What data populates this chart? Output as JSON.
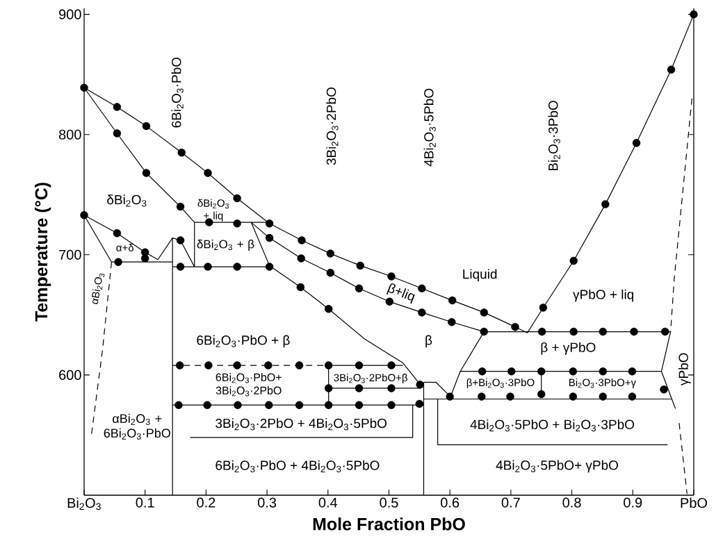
{
  "chart_data": {
    "type": "line",
    "xlabel": "Mole Fraction PbO",
    "ylabel": "Temperature (°C)",
    "xlim": [
      0,
      1
    ],
    "ylim": [
      500,
      905
    ],
    "xticks": [
      {
        "value": 0,
        "label": "Bi$_{2}$O$_{3}$"
      },
      0.1,
      0.2,
      0.3,
      0.4,
      0.5,
      0.6,
      0.7,
      0.8,
      0.9,
      {
        "value": 1,
        "label": "PbO"
      }
    ],
    "yticks": [
      600,
      700,
      800,
      900
    ],
    "series": [
      {
        "color": "#000000",
        "x": [
          0,
          0.054,
          0.102,
          0.16,
          0.203,
          0.251,
          0.304,
          0.357,
          0.404,
          0.453,
          0.504,
          0.554,
          0.604,
          0.656,
          0.707,
          0.727
        ],
        "values": [
          839,
          823,
          807,
          785,
          768,
          747,
          726,
          712,
          701,
          691,
          682,
          672,
          662,
          652,
          640,
          635
        ]
      },
      {
        "color": "#000000",
        "x": [
          0.727,
          0.753,
          0.803,
          0.855,
          0.906,
          0.963,
          1.0
        ],
        "values": [
          635,
          656,
          695,
          742,
          793,
          854,
          900
        ]
      },
      {
        "color": "#000000",
        "x": [
          0,
          0.054,
          0.102,
          0.158,
          0.181
        ],
        "values": [
          839,
          801,
          768,
          740,
          727
        ]
      },
      {
        "color": "#000000",
        "x": [
          0.181,
          0.304
        ],
        "values": [
          727,
          727
        ]
      },
      {
        "color": "#000000",
        "x": [
          0.274,
          0.304,
          0.356,
          0.404,
          0.451,
          0.501,
          0.554,
          0.603,
          0.656
        ],
        "values": [
          727,
          714,
          697,
          685,
          672,
          661,
          652,
          644,
          636
        ]
      },
      {
        "color": "#000000",
        "x": [
          0.274,
          0.304
        ],
        "values": [
          727,
          691
        ]
      },
      {
        "color": "#000000",
        "x": [
          0.304,
          0.355,
          0.401,
          0.46,
          0.523,
          0.542,
          0.551
        ],
        "values": [
          691,
          673,
          655,
          630,
          610,
          598,
          592
        ]
      },
      {
        "color": "#000000",
        "x": [
          0.145,
          0.304
        ],
        "values": [
          690,
          690
        ]
      },
      {
        "color": "#000000",
        "x": [
          0.181,
          0.181
        ],
        "values": [
          727,
          690
        ]
      },
      {
        "color": "#000000",
        "x": [
          0.121,
          0.145,
          0.158,
          0.181
        ],
        "values": [
          696,
          714,
          712,
          690
        ]
      },
      {
        "color": "#000000",
        "x": [
          0,
          0.054,
          0.1,
          0.121
        ],
        "values": [
          733,
          718,
          702,
          696
        ]
      },
      {
        "color": "#000000",
        "x": [
          0,
          0.045
        ],
        "values": [
          733,
          694
        ]
      },
      {
        "color": "#000000",
        "x": [
          0.045,
          0.145
        ],
        "values": [
          694,
          694
        ]
      },
      {
        "color": "#000000",
        "x": [
          0.145,
          0.145
        ],
        "values": [
          500,
          714
        ]
      },
      {
        "color": "#000000",
        "line_style": "dashed",
        "x": [
          0.045,
          0.03,
          0.012
        ],
        "values": [
          694,
          620,
          550
        ]
      },
      {
        "color": "#000000",
        "line_style": "dashed",
        "x": [
          0.145,
          0.401
        ],
        "values": [
          608,
          608
        ]
      },
      {
        "color": "#000000",
        "x": [
          0.401,
          0.523
        ],
        "values": [
          608,
          608
        ]
      },
      {
        "color": "#000000",
        "x": [
          0.145,
          0.557
        ],
        "values": [
          575,
          575
        ]
      },
      {
        "color": "#000000",
        "x": [
          0.401,
          0.551
        ],
        "values": [
          589,
          589
        ]
      },
      {
        "color": "#000000",
        "x": [
          0.401,
          0.401
        ],
        "values": [
          608,
          575
        ]
      },
      {
        "color": "#000000",
        "x": [
          0.174,
          0.539,
          0.539
        ],
        "values": [
          548,
          548,
          575
        ]
      },
      {
        "color": "#000000",
        "x": [
          0.557,
          0.557
        ],
        "values": [
          500,
          594
        ]
      },
      {
        "color": "#000000",
        "x": [
          0.557,
          0.577,
          0.601
        ],
        "values": [
          594,
          594,
          582
        ]
      },
      {
        "color": "#000000",
        "x": [
          0.557,
          0.964
        ],
        "values": [
          580,
          580
        ]
      },
      {
        "color": "#000000",
        "x": [
          0.617,
          0.947
        ],
        "values": [
          603,
          603
        ]
      },
      {
        "color": "#000000",
        "x": [
          0.75,
          0.75
        ],
        "values": [
          603,
          582
        ]
      },
      {
        "color": "#000000",
        "x": [
          0.656,
          0.617,
          0.601
        ],
        "values": [
          636,
          603,
          582
        ]
      },
      {
        "color": "#000000",
        "x": [
          0.656,
          0.962
        ],
        "values": [
          636,
          636
        ]
      },
      {
        "color": "#000000",
        "x": [
          0.962,
          0.947,
          0.964,
          0.97
        ],
        "values": [
          636,
          603,
          580,
          572
        ]
      },
      {
        "color": "#000000",
        "line_style": "dashed",
        "x": [
          0.997,
          0.968,
          0.962
        ],
        "values": [
          830,
          680,
          636
        ]
      },
      {
        "color": "#000000",
        "line_style": "dashed",
        "x": [
          0.976,
          0.989
        ],
        "values": [
          560,
          501
        ]
      },
      {
        "color": "#000000",
        "x": [
          0.58,
          0.58,
          0.957
        ],
        "values": [
          580,
          542,
          542
        ]
      },
      {
        "type": "scatter",
        "marker": "circle",
        "color": "#000000",
        "x": [
          0,
          0.054,
          0.102,
          0.16,
          0.203,
          0.251,
          0.304,
          0.357,
          0.404,
          0.453,
          0.504,
          0.554,
          0.604,
          0.656,
          0.707
        ],
        "values": [
          839,
          823,
          807,
          785,
          768,
          747,
          726,
          712,
          701,
          691,
          682,
          672,
          662,
          652,
          640
        ]
      },
      {
        "type": "scatter",
        "marker": "circle",
        "color": "#000000",
        "x": [
          0.753,
          0.803,
          0.855,
          0.906,
          0.963,
          1.0
        ],
        "values": [
          656,
          695,
          742,
          793,
          854,
          900
        ]
      },
      {
        "type": "scatter",
        "marker": "circle",
        "color": "#000000",
        "x": [
          0.054,
          0.102,
          0.158,
          0.205,
          0.251
        ],
        "values": [
          801,
          768,
          740,
          727,
          726
        ]
      },
      {
        "type": "scatter",
        "marker": "circle",
        "color": "#000000",
        "x": [
          0.304,
          0.356,
          0.404,
          0.451,
          0.501,
          0.554,
          0.603,
          0.656
        ],
        "values": [
          714,
          697,
          685,
          672,
          661,
          652,
          644,
          636
        ]
      },
      {
        "type": "scatter",
        "marker": "circle",
        "color": "#000000",
        "x": [
          0.355,
          0.401
        ],
        "values": [
          673,
          655
        ]
      },
      {
        "type": "scatter",
        "marker": "circle",
        "color": "#000000",
        "x": [
          0.158,
          0.203,
          0.251,
          0.304,
          0.158
        ],
        "values": [
          690,
          690,
          690,
          690,
          712
        ]
      },
      {
        "type": "scatter",
        "marker": "circle",
        "color": "#000000",
        "x": [
          0,
          0.054,
          0.1,
          0.1,
          0.056
        ],
        "values": [
          733,
          718,
          702,
          697,
          694
        ]
      },
      {
        "type": "scatter",
        "marker": "circle",
        "color": "#000000",
        "x": [
          0.157,
          0.204,
          0.251,
          0.302,
          0.353,
          0.401,
          0.451,
          0.504
        ],
        "values": [
          608,
          608,
          608,
          608,
          608,
          608,
          608,
          608
        ]
      },
      {
        "type": "scatter",
        "marker": "circle",
        "color": "#000000",
        "x": [
          0.155,
          0.202,
          0.252,
          0.303,
          0.353,
          0.401,
          0.451,
          0.504,
          0.55
        ],
        "values": [
          575,
          575,
          575,
          575,
          575,
          575,
          575,
          575,
          576
        ]
      },
      {
        "type": "scatter",
        "marker": "circle",
        "color": "#000000",
        "x": [
          0.401,
          0.451,
          0.504,
          0.551
        ],
        "values": [
          589,
          589,
          589,
          592
        ]
      },
      {
        "type": "scatter",
        "marker": "circle",
        "color": "#000000",
        "x": [
          0.751,
          0.803,
          0.851,
          0.902,
          0.953
        ],
        "values": [
          636,
          636,
          636,
          636,
          636
        ]
      },
      {
        "type": "scatter",
        "marker": "circle",
        "color": "#000000",
        "x": [
          0.653,
          0.701,
          0.75,
          0.802,
          0.851,
          0.899
        ],
        "values": [
          603,
          603,
          603,
          603,
          603,
          603
        ]
      },
      {
        "type": "scatter",
        "marker": "circle",
        "color": "#000000",
        "x": [
          0.6,
          0.652,
          0.699,
          0.75,
          0.802,
          0.851,
          0.899,
          0.951
        ],
        "values": [
          582,
          582,
          582,
          584,
          582,
          582,
          582,
          588
        ]
      }
    ],
    "annotations": [
      "6Bi$_{2}$O$_{3}$·PbO",
      "3Bi$_{2}$O$_{3}$·2PbO",
      "4Bi$_{2}$O$_{3}$·5PbO",
      "Bi$_{2}$O$_{3}$·3PbO",
      "δBi$_{2}$O$_{3}$",
      "δBi$_{2}$O$_{3}$ + liq",
      "δBi$_{2}$O$_{3}$ + β",
      "α+δ",
      "αBi$_{2}$O$_{3}$",
      "Liquid",
      "β+liq",
      "γPbO + liq",
      "β",
      "β + γPbO",
      "6Bi$_{2}$O$_{3}$·PbO + β",
      "6Bi$_{2}$O$_{3}$·PbO+ 3Bi$_{2}$O$_{3}$·2PbO",
      "3Bi$_{2}$O$_{3}$·2PbO+β",
      "αBi$_{2}$O$_{3}$ + 6Bi$_{2}$O$_{3}$·PbO",
      "3Bi$_{2}$O$_{3}$·2PbO + 4Bi$_{2}$O$_{3}$·5PbO",
      "6Bi$_{2}$O$_{3}$·PbO + 4Bi$_{2}$O$_{3}$·5PbO",
      "β+Bi$_{2}$O$_{3}$·3PbO",
      "Bi$_{2}$O$_{3}$·3PbO+γ",
      "4Bi$_{2}$O$_{3}$·5PbO + Bi$_{2}$O$_{3}$·3PbO",
      "4Bi$_{2}$O$_{3}$·5PbO+ γPbO",
      "γPbO"
    ]
  }
}
